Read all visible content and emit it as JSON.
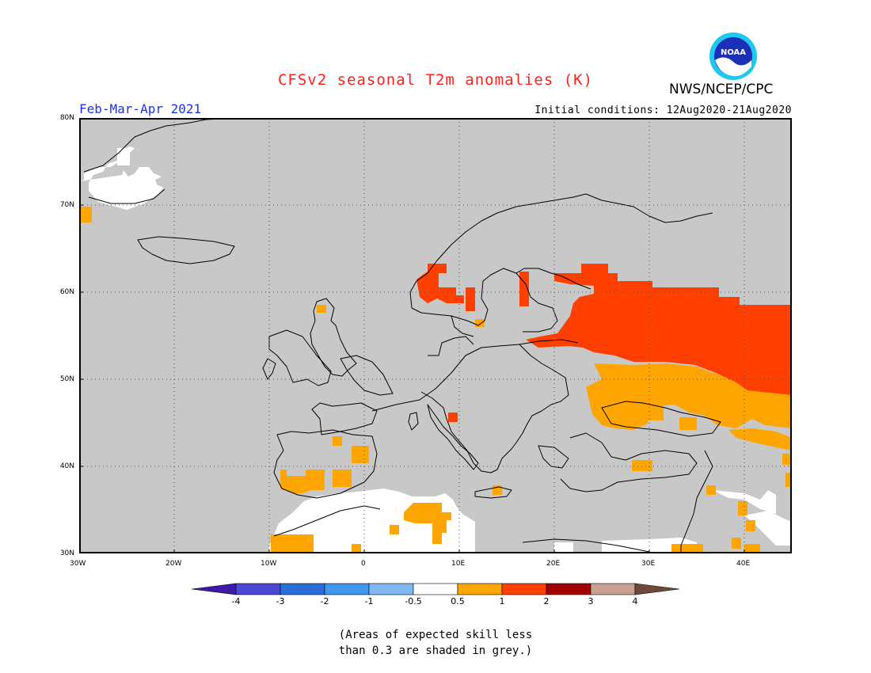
{
  "title": "CFSv2 seasonal T2m anomalies (K)",
  "agency": "NWS/NCEP/CPC",
  "logo_text": "NOAA",
  "period": "Feb-Mar-Apr 2021",
  "initial_conditions": "Initial conditions: 12Aug2020-21Aug2020",
  "lat_labels": [
    "80N",
    "70N",
    "60N",
    "50N",
    "40N",
    "30N"
  ],
  "lon_labels": [
    "30W",
    "20W",
    "10W",
    "0",
    "10E",
    "20E",
    "30E",
    "40E"
  ],
  "colorbar": {
    "labels": [
      "-4",
      "-3",
      "-2",
      "-1",
      "-0.5",
      "0.5",
      "1",
      "2",
      "3",
      "4"
    ],
    "colors": [
      "#3d1aa8",
      "#4a48d4",
      "#2a6ed8",
      "#4196ee",
      "#7fb8f2",
      "#ffffff",
      "#ffa500",
      "#ff3f00",
      "#a00000",
      "#c8a090",
      "#6e4a3a"
    ]
  },
  "note_line1": "(Areas of expected skill less",
  "note_line2": "than 0.3 are shaded in grey.)"
}
